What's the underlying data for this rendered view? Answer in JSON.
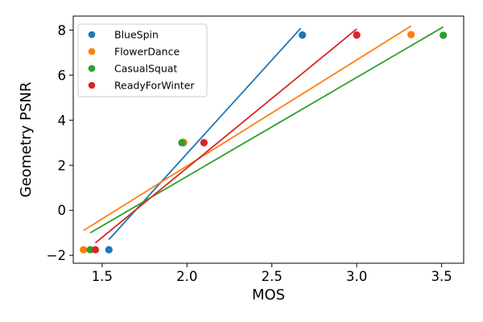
{
  "chart_data": {
    "type": "scatter",
    "xlabel": "MOS",
    "ylabel": "Geometry PSNR",
    "xlim": [
      1.33,
      3.63
    ],
    "ylim": [
      -2.35,
      8.62
    ],
    "x_ticks": [
      1.5,
      2.0,
      2.5,
      3.0,
      3.5
    ],
    "x_tick_labels": [
      "1.5",
      "2.0",
      "2.5",
      "3.0",
      "3.5"
    ],
    "y_ticks": [
      -2,
      0,
      2,
      4,
      6,
      8
    ],
    "y_tick_labels": [
      "−2",
      "0",
      "2",
      "4",
      "6",
      "8"
    ],
    "grid": false,
    "legend_position": "top-left",
    "series": [
      {
        "name": "BlueSpin",
        "color": "#1f77b4",
        "points": [
          {
            "x": 1.54,
            "y": -1.75
          },
          {
            "x": 1.98,
            "y": 3.0
          },
          {
            "x": 2.68,
            "y": 7.78
          }
        ],
        "fit_line": [
          {
            "x": 1.54,
            "y": -1.3
          },
          {
            "x": 2.67,
            "y": 8.08
          }
        ]
      },
      {
        "name": "FlowerDance",
        "color": "#ff7f0e",
        "points": [
          {
            "x": 1.39,
            "y": -1.75
          },
          {
            "x": 1.98,
            "y": 3.02
          },
          {
            "x": 3.32,
            "y": 7.8
          }
        ],
        "fit_line": [
          {
            "x": 1.39,
            "y": -0.9
          },
          {
            "x": 3.32,
            "y": 8.18
          }
        ]
      },
      {
        "name": "CasualSquat",
        "color": "#2ca02c",
        "points": [
          {
            "x": 1.43,
            "y": -1.75
          },
          {
            "x": 1.97,
            "y": 3.0
          },
          {
            "x": 3.51,
            "y": 7.77
          }
        ],
        "fit_line": [
          {
            "x": 1.43,
            "y": -1.0
          },
          {
            "x": 3.51,
            "y": 8.14
          }
        ]
      },
      {
        "name": "ReadyForWinter",
        "color": "#d62728",
        "points": [
          {
            "x": 1.46,
            "y": -1.75
          },
          {
            "x": 2.1,
            "y": 3.0
          },
          {
            "x": 3.0,
            "y": 7.78
          }
        ],
        "fit_line": [
          {
            "x": 1.46,
            "y": -1.45
          },
          {
            "x": 3.0,
            "y": 8.05
          }
        ]
      }
    ]
  }
}
